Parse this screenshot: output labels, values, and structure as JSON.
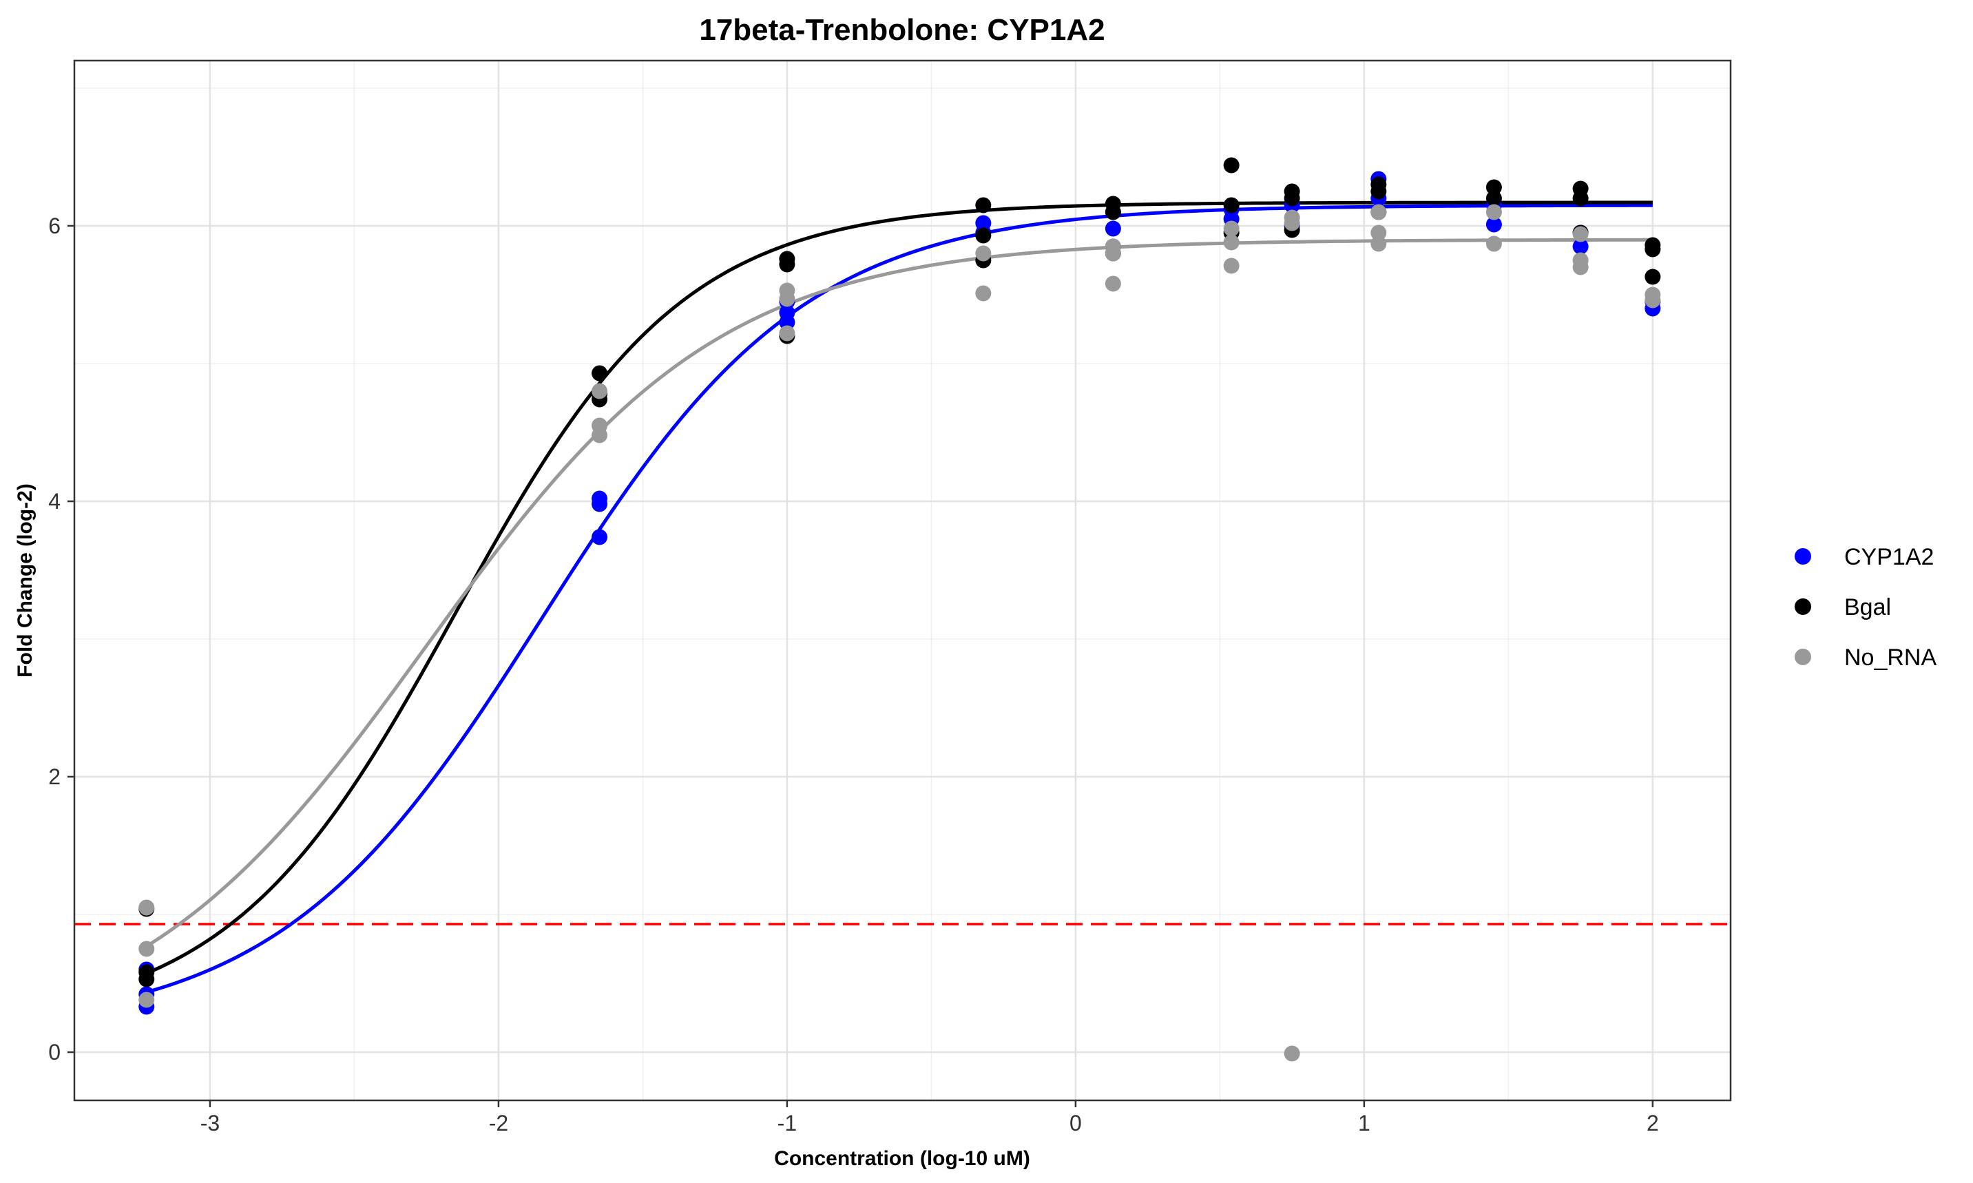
{
  "chart_data": {
    "type": "scatter",
    "title": "17beta-Trenbolone: CYP1A2",
    "xlabel": "Concentration (log-10 uM)",
    "ylabel": "Fold Change (log-2)",
    "xlim": [
      -3.47,
      2.27
    ],
    "ylim": [
      -0.35,
      7.2
    ],
    "x_ticks": [
      -3,
      -2,
      -1,
      0,
      1,
      2
    ],
    "x_tick_labels": [
      "-3",
      "-2",
      "-1",
      "0",
      "1",
      "2"
    ],
    "y_ticks": [
      0,
      2,
      4,
      6
    ],
    "y_tick_labels": [
      "0",
      "2",
      "4",
      "6"
    ],
    "grid": true,
    "legend_position": "right",
    "reference_line": {
      "y": 0.93,
      "color": "#ff0000",
      "style": "dashed"
    },
    "series": [
      {
        "name": "CYP1A2",
        "color": "#0000ff",
        "points": [
          [
            -3.22,
            0.33
          ],
          [
            -3.22,
            0.42
          ],
          [
            -3.22,
            0.6
          ],
          [
            -1.65,
            3.74
          ],
          [
            -1.65,
            3.98
          ],
          [
            -1.65,
            4.02
          ],
          [
            -1.0,
            5.3
          ],
          [
            -1.0,
            5.37
          ],
          [
            -1.0,
            5.45
          ],
          [
            -0.32,
            5.95
          ],
          [
            -0.32,
            6.02
          ],
          [
            0.13,
            5.85
          ],
          [
            0.13,
            5.98
          ],
          [
            0.13,
            6.1
          ],
          [
            0.54,
            6.05
          ],
          [
            0.54,
            6.12
          ],
          [
            0.75,
            6.0
          ],
          [
            0.75,
            6.15
          ],
          [
            1.05,
            6.2
          ],
          [
            1.05,
            6.34
          ],
          [
            1.45,
            6.01
          ],
          [
            1.45,
            6.15
          ],
          [
            1.75,
            5.85
          ],
          [
            1.75,
            5.95
          ],
          [
            2.0,
            5.4
          ],
          [
            2.0,
            5.45
          ]
        ],
        "curve": {
          "bottom": 0.15,
          "top": 6.15,
          "log_ec50": -1.85,
          "hill": 0.95
        }
      },
      {
        "name": "Bgal",
        "color": "#000000",
        "points": [
          [
            -3.22,
            0.53
          ],
          [
            -3.22,
            0.58
          ],
          [
            -3.22,
            1.04
          ],
          [
            -1.65,
            4.74
          ],
          [
            -1.65,
            4.78
          ],
          [
            -1.65,
            4.93
          ],
          [
            -1.0,
            5.2
          ],
          [
            -1.0,
            5.72
          ],
          [
            -1.0,
            5.76
          ],
          [
            -0.32,
            5.75
          ],
          [
            -0.32,
            5.93
          ],
          [
            -0.32,
            6.15
          ],
          [
            0.13,
            5.8
          ],
          [
            0.13,
            6.1
          ],
          [
            0.13,
            6.16
          ],
          [
            0.54,
            5.95
          ],
          [
            0.54,
            6.15
          ],
          [
            0.54,
            6.44
          ],
          [
            0.75,
            5.97
          ],
          [
            0.75,
            6.2
          ],
          [
            0.75,
            6.25
          ],
          [
            1.05,
            6.1
          ],
          [
            1.05,
            6.25
          ],
          [
            1.05,
            6.3
          ],
          [
            1.45,
            6.2
          ],
          [
            1.45,
            6.28
          ],
          [
            1.75,
            5.95
          ],
          [
            1.75,
            6.2
          ],
          [
            1.75,
            6.27
          ],
          [
            2.0,
            5.63
          ],
          [
            2.0,
            5.83
          ],
          [
            2.0,
            5.86
          ]
        ],
        "curve": {
          "bottom": 0.2,
          "top": 6.17,
          "log_ec50": -2.15,
          "hill": 1.1
        }
      },
      {
        "name": "No_RNA",
        "color": "#999999",
        "points": [
          [
            -3.22,
            0.38
          ],
          [
            -3.22,
            0.75
          ],
          [
            -3.22,
            1.05
          ],
          [
            -1.65,
            4.48
          ],
          [
            -1.65,
            4.55
          ],
          [
            -1.65,
            4.8
          ],
          [
            -1.0,
            5.22
          ],
          [
            -1.0,
            5.47
          ],
          [
            -1.0,
            5.53
          ],
          [
            -0.32,
            5.51
          ],
          [
            -0.32,
            5.8
          ],
          [
            0.13,
            5.58
          ],
          [
            0.13,
            5.8
          ],
          [
            0.13,
            5.85
          ],
          [
            0.54,
            5.71
          ],
          [
            0.54,
            5.88
          ],
          [
            0.54,
            5.98
          ],
          [
            0.75,
            -0.01
          ],
          [
            0.75,
            6.02
          ],
          [
            0.75,
            6.06
          ],
          [
            1.05,
            5.87
          ],
          [
            1.05,
            5.95
          ],
          [
            1.05,
            6.1
          ],
          [
            1.45,
            5.87
          ],
          [
            1.45,
            6.1
          ],
          [
            1.75,
            5.7
          ],
          [
            1.75,
            5.75
          ],
          [
            1.75,
            5.94
          ],
          [
            2.0,
            5.46
          ],
          [
            2.0,
            5.5
          ]
        ],
        "curve": {
          "bottom": 0.0,
          "top": 5.9,
          "log_ec50": -2.25,
          "hill": 0.85
        }
      }
    ]
  }
}
